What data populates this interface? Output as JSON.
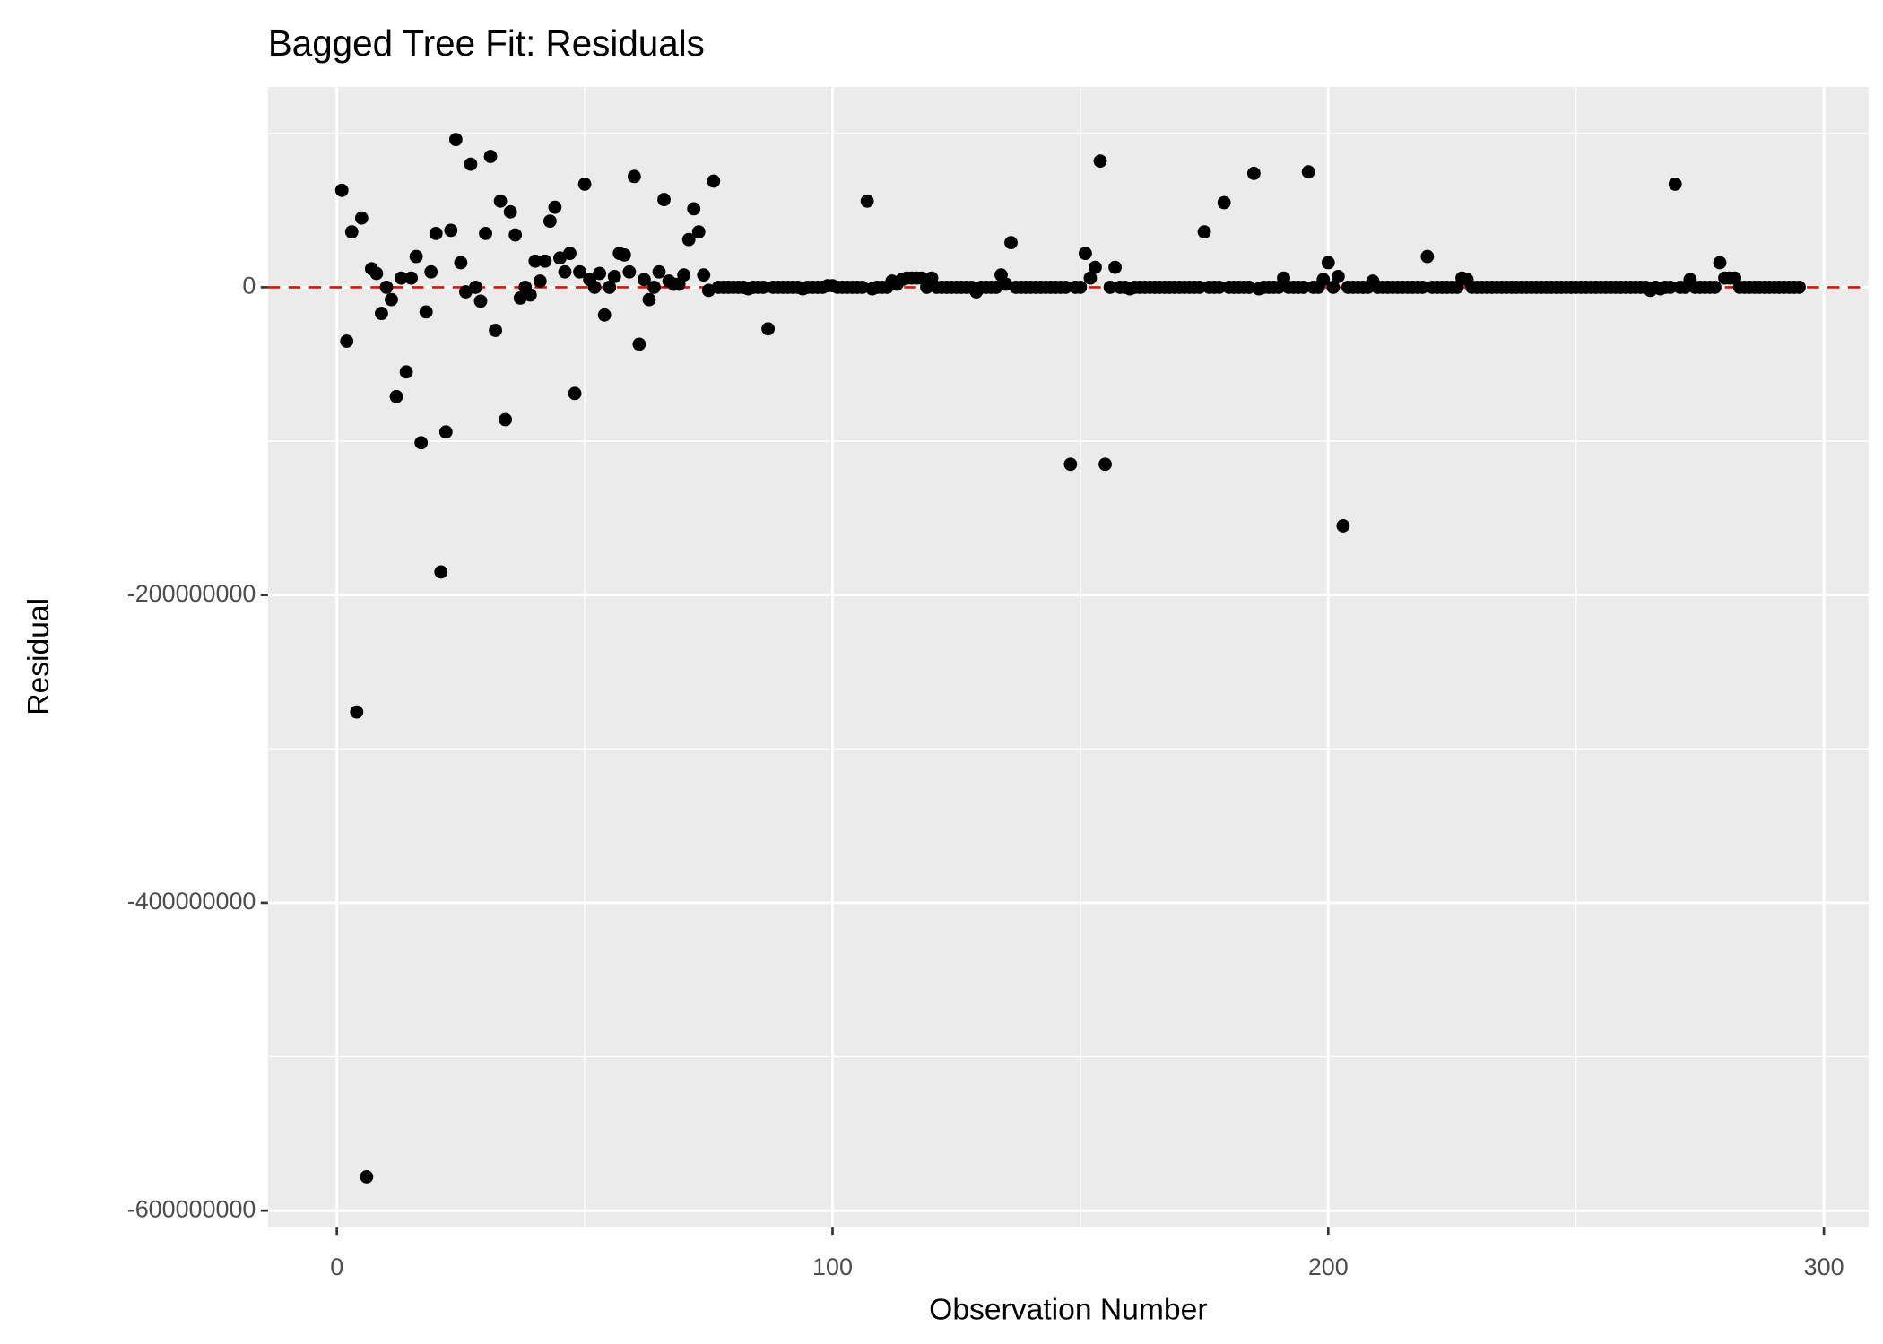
{
  "chart_data": {
    "type": "scatter",
    "title": "Bagged Tree Fit: Residuals",
    "x_label": "Observation Number",
    "y_label": "Residual",
    "xlim": [
      -13.9,
      309
    ],
    "ylim": [
      -611000000,
      130200000
    ],
    "xticks": [
      0,
      100,
      200,
      300
    ],
    "yticks": [
      -600000000,
      -400000000,
      -200000000,
      0
    ],
    "grid": true,
    "color": "#000000",
    "hline": {
      "value": 0,
      "color": "#ff0000"
    },
    "x": [
      1,
      2,
      3,
      4,
      5,
      6,
      7,
      8,
      9,
      10,
      11,
      12,
      13,
      14,
      15,
      16,
      17,
      18,
      19,
      20,
      21,
      22,
      23,
      24,
      25,
      26,
      27,
      28,
      29,
      30,
      31,
      32,
      33,
      34,
      35,
      36,
      37,
      38,
      39,
      40,
      41,
      42,
      43,
      44,
      45,
      46,
      47,
      48,
      49,
      50,
      51,
      52,
      53,
      54,
      55,
      56,
      57,
      58,
      59,
      60,
      61,
      62,
      63,
      64,
      65,
      66,
      67,
      68,
      69,
      70,
      71,
      72,
      73,
      74,
      75,
      76,
      77,
      78,
      79,
      80,
      81,
      82,
      83,
      84,
      85,
      86,
      87,
      88,
      89,
      90,
      91,
      92,
      93,
      94,
      95,
      96,
      97,
      98,
      99,
      100,
      101,
      102,
      103,
      104,
      105,
      106,
      107,
      108,
      109,
      110,
      111,
      112,
      113,
      114,
      115,
      116,
      117,
      118,
      119,
      120,
      121,
      122,
      123,
      124,
      125,
      126,
      127,
      128,
      129,
      130,
      131,
      132,
      133,
      134,
      135,
      136,
      137,
      138,
      139,
      140,
      141,
      142,
      143,
      144,
      145,
      146,
      147,
      148,
      149,
      150,
      151,
      152,
      153,
      154,
      155,
      156,
      157,
      158,
      159,
      160,
      161,
      162,
      163,
      164,
      165,
      166,
      167,
      168,
      169,
      170,
      171,
      172,
      173,
      174,
      175,
      176,
      177,
      178,
      179,
      180,
      181,
      182,
      183,
      184,
      185,
      186,
      187,
      188,
      189,
      190,
      191,
      192,
      193,
      194,
      195,
      196,
      197,
      198,
      199,
      200,
      201,
      202,
      203,
      204,
      205,
      206,
      207,
      208,
      209,
      210,
      211,
      212,
      213,
      214,
      215,
      216,
      217,
      218,
      219,
      220,
      221,
      222,
      223,
      224,
      225,
      226,
      227,
      228,
      229,
      230,
      231,
      232,
      233,
      234,
      235,
      236,
      237,
      238,
      239,
      240,
      241,
      242,
      243,
      244,
      245,
      246,
      247,
      248,
      249,
      250,
      251,
      252,
      253,
      254,
      255,
      256,
      257,
      258,
      259,
      260,
      261,
      262,
      263,
      264,
      265,
      266,
      267,
      268,
      269,
      270,
      271,
      272,
      273,
      274,
      275,
      276,
      277,
      278,
      279,
      280,
      281,
      282,
      283,
      284,
      285,
      286,
      287,
      288,
      289,
      290,
      291,
      292,
      293,
      294,
      295
    ],
    "values": [
      63000000,
      -35000000,
      36000000,
      -276000000,
      45000000,
      -578000000,
      12000000,
      9000000,
      -17000000,
      0,
      -8000000,
      -71000000,
      6000000,
      -55000000,
      6000000,
      20000000,
      -101000000,
      -16000000,
      10000000,
      35000000,
      -185000000,
      -94000000,
      37000000,
      96000000,
      16000000,
      -3000000,
      80000000,
      0,
      -9000000,
      35000000,
      85000000,
      -28000000,
      56000000,
      -86000000,
      49000000,
      34000000,
      -7000000,
      0,
      -5000000,
      17000000,
      4000000,
      17000000,
      43000000,
      52000000,
      19000000,
      10000000,
      22000000,
      -69000000,
      10000000,
      67000000,
      5000000,
      0,
      9000000,
      -18000000,
      0,
      7000000,
      22000000,
      21000000,
      10000000,
      72000000,
      -37000000,
      5000000,
      -8000000,
      0,
      10000000,
      57000000,
      4000000,
      2000000,
      2000000,
      8000000,
      31000000,
      51000000,
      36000000,
      8000000,
      -2000000,
      69000000,
      0,
      0,
      0,
      0,
      0,
      0,
      -1000000,
      0,
      0,
      0,
      -27000000,
      0,
      0,
      0,
      0,
      0,
      0,
      -1000000,
      0,
      0,
      0,
      0,
      1000000,
      1000000,
      0,
      0,
      0,
      0,
      0,
      0,
      56000000,
      -1000000,
      0,
      0,
      0,
      4000000,
      2000000,
      5000000,
      6000000,
      6000000,
      6000000,
      6000000,
      0,
      6000000,
      0,
      0,
      0,
      0,
      0,
      0,
      0,
      0,
      -3000000,
      0,
      0,
      0,
      0,
      8000000,
      2000000,
      29000000,
      0,
      0,
      0,
      0,
      0,
      0,
      0,
      0,
      0,
      0,
      0,
      -115000000,
      0,
      0,
      22000000,
      6000000,
      13000000,
      82000000,
      -115000000,
      0,
      13000000,
      0,
      0,
      -1000000,
      0,
      0,
      0,
      0,
      0,
      0,
      0,
      0,
      0,
      0,
      0,
      0,
      0,
      0,
      36000000,
      0,
      0,
      0,
      55000000,
      0,
      0,
      0,
      0,
      0,
      74000000,
      -1000000,
      0,
      0,
      0,
      0,
      6000000,
      0,
      0,
      0,
      0,
      75000000,
      0,
      0,
      5000000,
      16000000,
      0,
      7000000,
      -155000000,
      0,
      0,
      0,
      0,
      0,
      4000000,
      0,
      0,
      0,
      0,
      0,
      0,
      0,
      0,
      0,
      0,
      20000000,
      0,
      0,
      0,
      0,
      0,
      0,
      6000000,
      5000000,
      0,
      0,
      0,
      0,
      0,
      0,
      0,
      0,
      0,
      0,
      0,
      0,
      0,
      0,
      0,
      0,
      0,
      0,
      0,
      0,
      0,
      0,
      0,
      0,
      0,
      0,
      0,
      0,
      0,
      0,
      0,
      0,
      0,
      0,
      0,
      0,
      -2000000,
      0,
      -1000000,
      0,
      0,
      67000000,
      0,
      0,
      5000000,
      0,
      0,
      0,
      0,
      0,
      16000000,
      6000000,
      6000000,
      6000000,
      0,
      0,
      0,
      0,
      0,
      0,
      0,
      0,
      0,
      0,
      0,
      0,
      0
    ]
  }
}
